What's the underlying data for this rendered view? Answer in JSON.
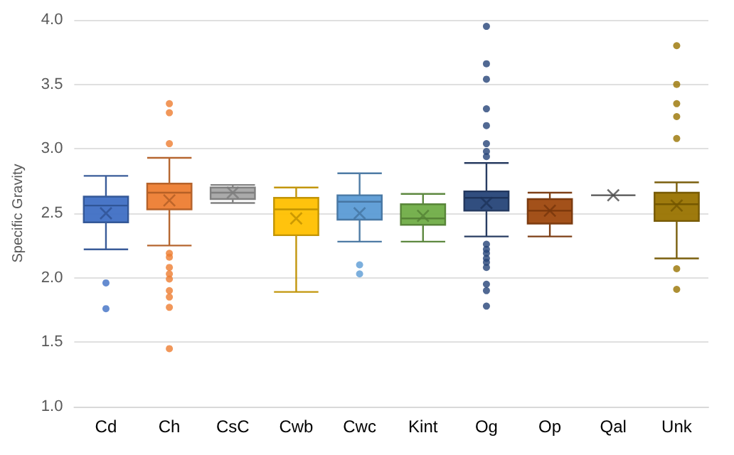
{
  "chart_data": {
    "type": "box",
    "ylabel": "Specific Gravity",
    "categories": [
      "Cd",
      "Ch",
      "CsC",
      "Cwb",
      "Cwc",
      "Kint",
      "Og",
      "Op",
      "Qal",
      "Unk"
    ],
    "colors": [
      "#3f6fc4",
      "#ed7d31",
      "#a5a5a5",
      "#ffc000",
      "#5b9bd5",
      "#70ad47",
      "#264478",
      "#9e480e",
      "#636363",
      "#997300"
    ],
    "boxes": [
      {
        "low": 2.22,
        "q1": 2.43,
        "median": 2.56,
        "q3": 2.63,
        "high": 2.79,
        "mean": 2.5,
        "outliers": [
          1.96,
          1.76
        ]
      },
      {
        "low": 2.25,
        "q1": 2.53,
        "median": 2.66,
        "q3": 2.73,
        "high": 2.93,
        "mean": 2.6,
        "outliers": [
          3.35,
          3.28,
          3.04,
          2.19,
          2.16,
          2.08,
          2.03,
          1.99,
          1.9,
          1.85,
          1.77,
          1.45
        ]
      },
      {
        "low": 2.58,
        "q1": 2.61,
        "median": 2.66,
        "q3": 2.7,
        "high": 2.72,
        "mean": 2.66
      },
      {
        "low": 1.89,
        "q1": 2.33,
        "median": 2.53,
        "q3": 2.62,
        "high": 2.7,
        "mean": 2.46
      },
      {
        "low": 2.28,
        "q1": 2.45,
        "median": 2.59,
        "q3": 2.64,
        "high": 2.81,
        "mean": 2.5,
        "outliers": [
          2.1,
          2.03
        ]
      },
      {
        "low": 2.28,
        "q1": 2.41,
        "median": 2.46,
        "q3": 2.57,
        "high": 2.65,
        "mean": 2.48
      },
      {
        "low": 2.32,
        "q1": 2.52,
        "median": 2.62,
        "q3": 2.67,
        "high": 2.89,
        "mean": 2.58,
        "outliers": [
          3.95,
          3.66,
          3.54,
          3.31,
          3.18,
          3.04,
          2.98,
          2.94,
          2.26,
          2.22,
          2.19,
          2.15,
          2.12,
          2.08,
          1.95,
          1.9,
          1.78
        ]
      },
      {
        "low": 2.32,
        "q1": 2.42,
        "median": 2.52,
        "q3": 2.61,
        "high": 2.66,
        "mean": 2.52
      },
      {
        "low": 2.64,
        "q1": 2.64,
        "median": 2.64,
        "q3": 2.64,
        "high": 2.64,
        "mean": 2.64
      },
      {
        "low": 2.15,
        "q1": 2.44,
        "median": 2.57,
        "q3": 2.66,
        "high": 2.74,
        "mean": 2.56,
        "outliers": [
          3.8,
          3.5,
          3.35,
          3.25,
          3.08,
          2.07,
          1.91
        ]
      }
    ],
    "ylim": [
      1,
      4
    ],
    "yticks": [
      {
        "value": 1,
        "label": "1.0"
      },
      {
        "value": 1.5,
        "label": "1.5"
      },
      {
        "value": 2,
        "label": "2.0"
      },
      {
        "value": 2.5,
        "label": "2.5"
      },
      {
        "value": 3,
        "label": "3.0"
      },
      {
        "value": 3.5,
        "label": "3.5"
      },
      {
        "value": 4,
        "label": "4.0"
      }
    ],
    "grid": "y"
  }
}
